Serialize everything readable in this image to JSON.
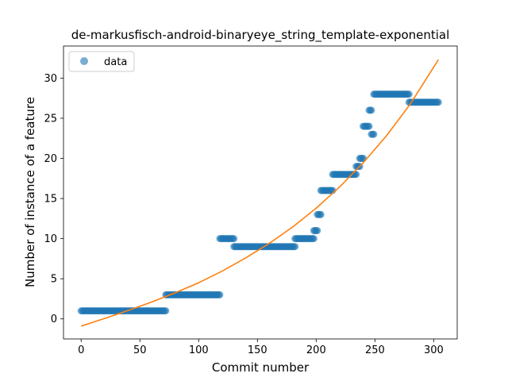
{
  "chart_data": {
    "type": "scatter",
    "title": "de-markusfisch-android-binaryeye_string_template-exponential",
    "xlabel": "Commit number",
    "ylabel": "Number of instance of a feature",
    "xlim": [
      -15,
      320
    ],
    "ylim": [
      -2.5,
      34
    ],
    "xticks": [
      0,
      50,
      100,
      150,
      200,
      250,
      300
    ],
    "yticks": [
      0,
      5,
      10,
      15,
      20,
      25,
      30
    ],
    "grid": false,
    "legend": {
      "placement": "top-left",
      "entries": [
        "data"
      ]
    },
    "colors": {
      "data": "#1f77b4",
      "fit": "#ff7f0e"
    },
    "series": [
      {
        "name": "data",
        "style": "markers",
        "segments": [
          {
            "x_start": 0,
            "x_end": 72,
            "y": 1
          },
          {
            "x_start": 72,
            "x_end": 118,
            "y": 3
          },
          {
            "x_start": 118,
            "x_end": 130,
            "y": 10
          },
          {
            "x_start": 130,
            "x_end": 182,
            "y": 9
          },
          {
            "x_start": 182,
            "x_end": 198,
            "y": 10
          },
          {
            "x_start": 198,
            "x_end": 201,
            "y": 11
          },
          {
            "x_start": 201,
            "x_end": 204,
            "y": 13
          },
          {
            "x_start": 204,
            "x_end": 214,
            "y": 16
          },
          {
            "x_start": 214,
            "x_end": 234,
            "y": 18
          },
          {
            "x_start": 234,
            "x_end": 237,
            "y": 19
          },
          {
            "x_start": 237,
            "x_end": 240,
            "y": 20
          },
          {
            "x_start": 240,
            "x_end": 245,
            "y": 24
          },
          {
            "x_start": 245,
            "x_end": 247,
            "y": 26
          },
          {
            "x_start": 247,
            "x_end": 249,
            "y": 23
          },
          {
            "x_start": 249,
            "x_end": 279,
            "y": 28
          },
          {
            "x_start": 279,
            "x_end": 304,
            "y": 27
          }
        ]
      },
      {
        "style": "line",
        "x": [
          0,
          20,
          40,
          60,
          80,
          100,
          120,
          140,
          160,
          180,
          200,
          220,
          240,
          260,
          280,
          304
        ],
        "y": [
          -0.9,
          0.05,
          1.05,
          2.1,
          3.25,
          4.5,
          5.95,
          7.6,
          9.4,
          11.45,
          13.8,
          16.45,
          19.45,
          22.85,
          26.75,
          32.3
        ]
      }
    ]
  }
}
